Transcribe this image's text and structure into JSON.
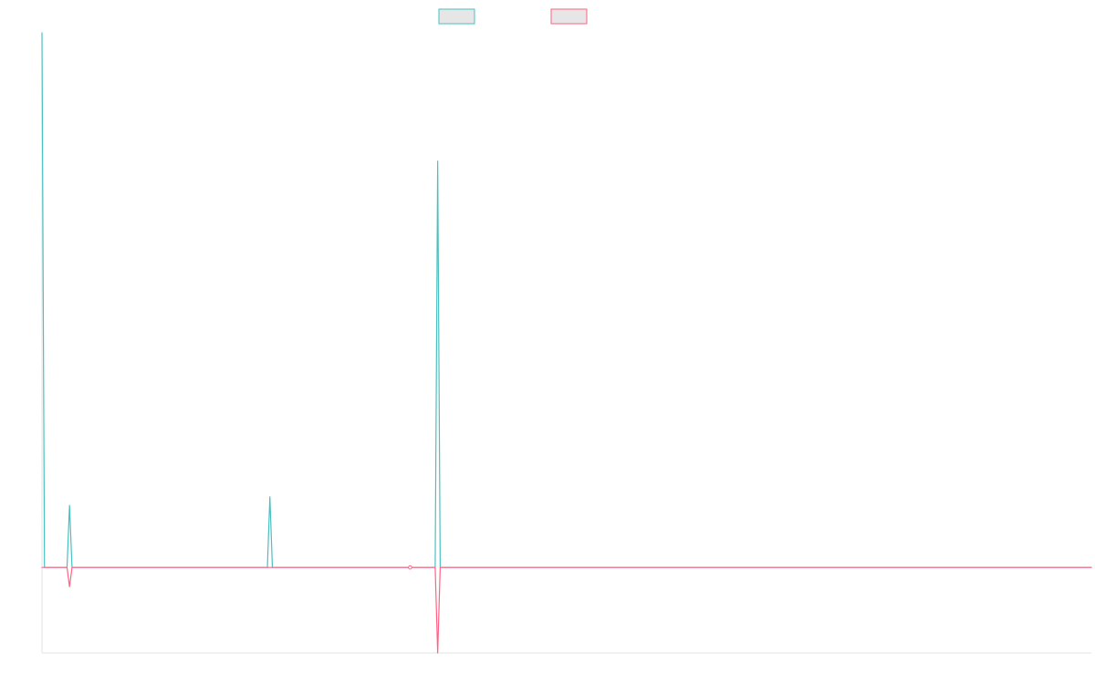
{
  "chart_data": {
    "type": "line",
    "x_count": 420,
    "ylim": [
      -0.2,
      1.25
    ],
    "series": [
      {
        "color": "#4bc0c0",
        "legend_fill": "#e6e6e6",
        "points": [
          {
            "x": 0,
            "y": 1.25
          },
          {
            "x": 1,
            "y": 0
          },
          {
            "x": 10,
            "y": 0
          },
          {
            "x": 11,
            "y": 0.145
          },
          {
            "x": 12,
            "y": 0
          },
          {
            "x": 90,
            "y": 0
          },
          {
            "x": 91,
            "y": 0.165
          },
          {
            "x": 92,
            "y": 0
          },
          {
            "x": 157,
            "y": 0
          },
          {
            "x": 158,
            "y": 0.95
          },
          {
            "x": 159,
            "y": 0
          },
          {
            "x": 419,
            "y": 0
          }
        ]
      },
      {
        "color": "#ff6384",
        "legend_fill": "#e6e6e6",
        "points": [
          {
            "x": 0,
            "y": 0
          },
          {
            "x": 10,
            "y": 0
          },
          {
            "x": 11,
            "y": -0.045
          },
          {
            "x": 12,
            "y": 0
          },
          {
            "x": 157,
            "y": 0
          },
          {
            "x": 158,
            "y": -0.2
          },
          {
            "x": 159,
            "y": 0
          },
          {
            "x": 419,
            "y": 0
          }
        ],
        "marker_points": [
          {
            "x": 147,
            "y": 0
          }
        ]
      }
    ]
  }
}
